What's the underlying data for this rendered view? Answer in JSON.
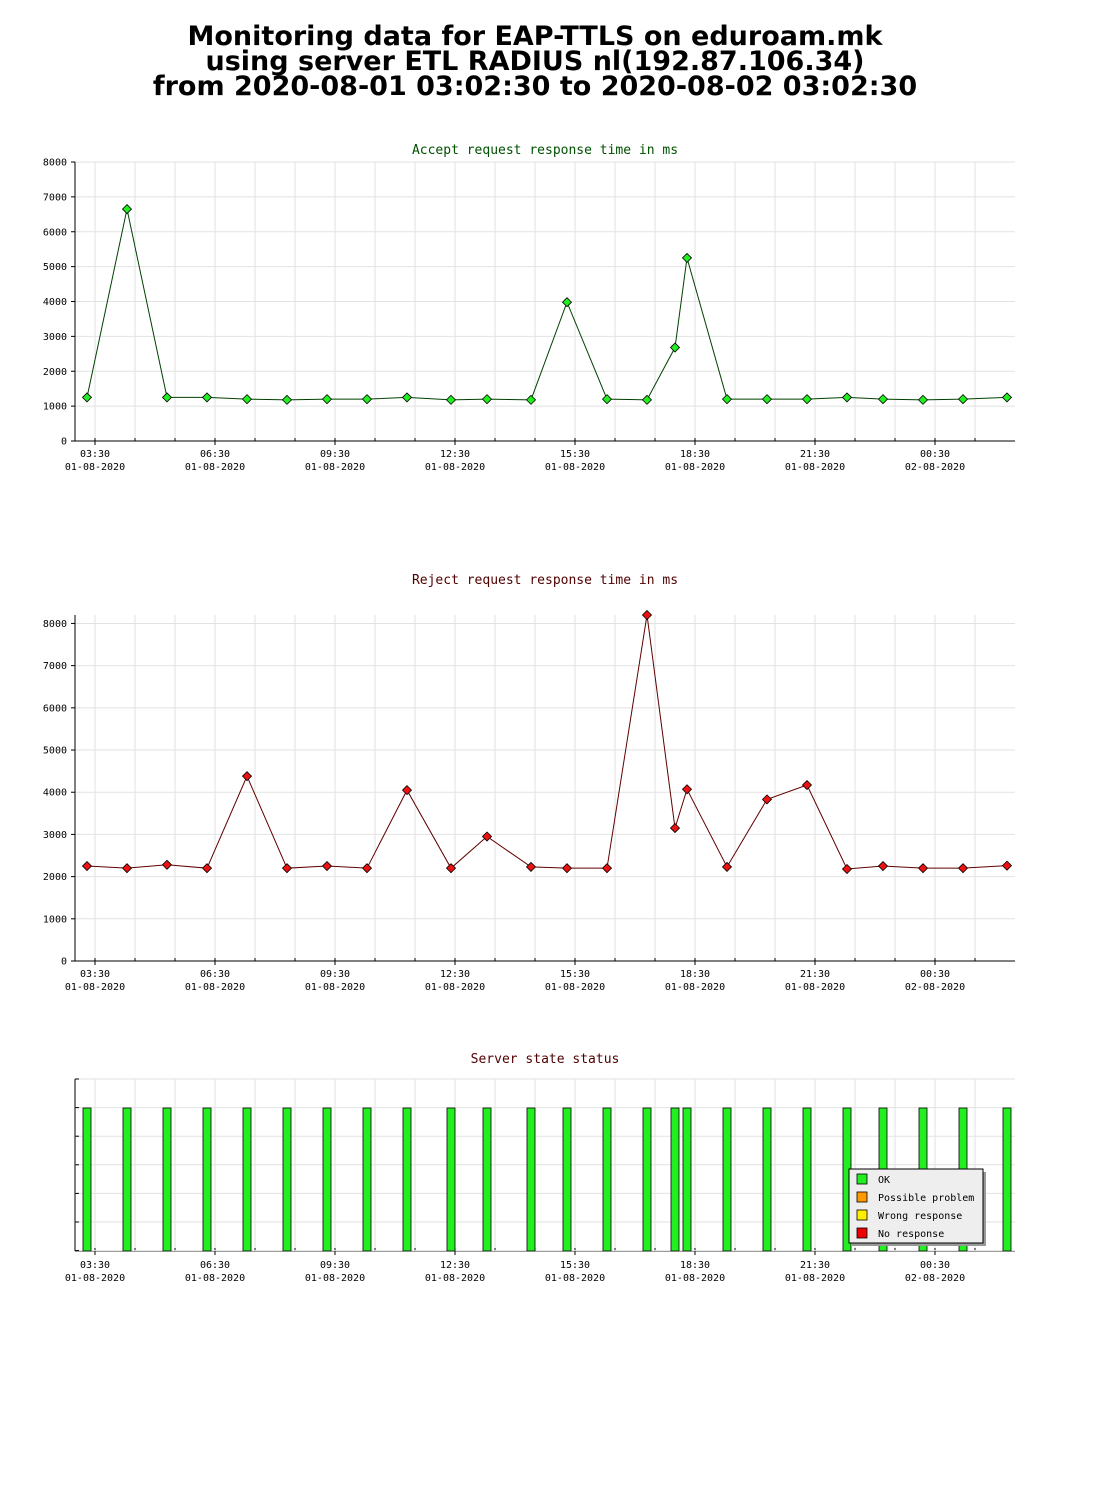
{
  "header": {
    "line1": "Monitoring data for EAP-TTLS on eduroam.mk",
    "line2": "using server ETL RADIUS nl(192.87.106.34)",
    "line3": "from 2020-08-01 03:02:30 to 2020-08-02 03:02:30"
  },
  "time_ticks": [
    {
      "time": "03:30",
      "date": "01-08-2020",
      "hour": 3.5
    },
    {
      "time": "06:30",
      "date": "01-08-2020",
      "hour": 6.5
    },
    {
      "time": "09:30",
      "date": "01-08-2020",
      "hour": 9.5
    },
    {
      "time": "12:30",
      "date": "01-08-2020",
      "hour": 12.5
    },
    {
      "time": "15:30",
      "date": "01-08-2020",
      "hour": 15.5
    },
    {
      "time": "18:30",
      "date": "01-08-2020",
      "hour": 18.5
    },
    {
      "time": "21:30",
      "date": "01-08-2020",
      "hour": 21.5
    },
    {
      "time": "00:30",
      "date": "02-08-2020",
      "hour": 24.5
    }
  ],
  "colors": {
    "accept_title": "#005000",
    "accept_line": "#004000",
    "accept_marker": "#22ee22",
    "reject_title": "#500000",
    "reject_line": "#600000",
    "reject_marker": "#ee1111",
    "status_title": "#500000",
    "ok": "#22ee22",
    "possible_problem": "#ff9900",
    "wrong_response": "#ffee00",
    "no_response": "#ee0000"
  },
  "chart_data": [
    {
      "type": "line",
      "title": "Accept request response time in ms",
      "ylim": [
        0,
        8000
      ],
      "yticks": [
        0,
        1000,
        2000,
        3000,
        4000,
        5000,
        6000,
        7000,
        8000
      ],
      "x_unit": "hours since 2020-08-01 00:00",
      "xlim": [
        3.0,
        26.5
      ],
      "grid": true,
      "series": [
        {
          "x": [
            3.3,
            4.3,
            5.3,
            6.3,
            7.3,
            8.3,
            9.3,
            10.3,
            11.3,
            12.4,
            13.3,
            14.4,
            15.3,
            16.3,
            17.3,
            18.0,
            18.3,
            19.3,
            20.3,
            21.3,
            22.3,
            23.2,
            24.2,
            25.2,
            26.3
          ],
          "y": [
            1250,
            6650,
            1250,
            1250,
            1200,
            1180,
            1200,
            1200,
            1250,
            1180,
            1200,
            1180,
            3980,
            1200,
            1180,
            2680,
            5250,
            1200,
            1200,
            1200,
            1250,
            1200,
            1180,
            1200,
            1250
          ]
        }
      ]
    },
    {
      "type": "line",
      "title": "Reject request response time in ms",
      "ylim": [
        0,
        8200
      ],
      "yticks": [
        0,
        1000,
        2000,
        3000,
        4000,
        5000,
        6000,
        7000,
        8000
      ],
      "x_unit": "hours since 2020-08-01 00:00",
      "xlim": [
        3.0,
        26.5
      ],
      "grid": true,
      "series": [
        {
          "x": [
            3.3,
            4.3,
            5.3,
            6.3,
            7.3,
            8.3,
            9.3,
            10.3,
            11.3,
            12.4,
            13.3,
            14.4,
            15.3,
            16.3,
            17.3,
            18.0,
            18.3,
            19.3,
            20.3,
            21.3,
            22.3,
            23.2,
            24.2,
            25.2,
            26.3
          ],
          "y": [
            2250,
            2200,
            2280,
            2200,
            4380,
            2200,
            2250,
            2200,
            4050,
            2200,
            2950,
            2230,
            2200,
            2200,
            8200,
            3150,
            4070,
            2230,
            3830,
            4170,
            2180,
            2250,
            2200,
            2200,
            2260
          ]
        }
      ]
    },
    {
      "type": "bar",
      "title": "Server state status",
      "x_unit": "hours since 2020-08-01 00:00",
      "xlim": [
        3.0,
        26.5
      ],
      "x": [
        3.3,
        4.3,
        5.3,
        6.3,
        7.3,
        8.3,
        9.3,
        10.3,
        11.3,
        12.4,
        13.3,
        14.4,
        15.3,
        16.3,
        17.3,
        18.0,
        18.3,
        19.3,
        20.3,
        21.3,
        22.3,
        23.2,
        24.2,
        25.2,
        26.3
      ],
      "state": [
        "OK",
        "OK",
        "OK",
        "OK",
        "OK",
        "OK",
        "OK",
        "OK",
        "OK",
        "OK",
        "OK",
        "OK",
        "OK",
        "OK",
        "OK",
        "OK",
        "OK",
        "OK",
        "OK",
        "OK",
        "OK",
        "OK",
        "OK",
        "OK",
        "OK"
      ],
      "legend": [
        "OK",
        "Possible problem",
        "Wrong response",
        "No response"
      ],
      "legend_placement": "bottom-right"
    }
  ]
}
